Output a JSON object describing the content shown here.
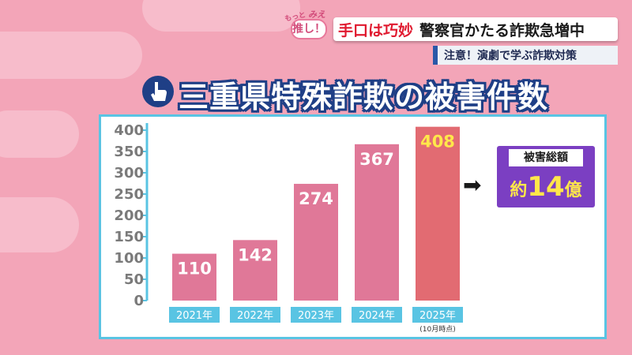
{
  "logo": {
    "small": "もっと",
    "mie": "みえ",
    "main": "推し！"
  },
  "headline": {
    "emphasis": "手口は巧妙",
    "rest": "警察官かたる詐欺急増中"
  },
  "subtitle": "注意！演劇で学ぶ詐欺対策",
  "title": "三重県特殊詐欺の被害件数",
  "callout": {
    "label": "被害総額",
    "prefix": "約",
    "number": "14",
    "suffix": "億",
    "arrow_icon": "right-arrow-icon"
  },
  "colors": {
    "bar_normal": "#e07898",
    "bar_highlight": "#e26b72",
    "label_highlight": "#ffe74a",
    "axis_blue": "#59c4e3",
    "title_outline": "#1f3f86",
    "callout_bg": "#7b3fc2"
  },
  "chart_data": {
    "type": "bar",
    "title": "三重県特殊詐欺の被害件数",
    "categories": [
      "2021年",
      "2022年",
      "2023年",
      "2024年",
      "2025年"
    ],
    "category_notes": [
      "",
      "",
      "",
      "",
      "(10月時点)"
    ],
    "values": [
      110,
      142,
      274,
      367,
      408
    ],
    "highlight_index": 4,
    "ylim": [
      0,
      400
    ],
    "yticks": [
      0,
      50,
      100,
      150,
      200,
      250,
      300,
      350,
      400
    ],
    "grid": false
  }
}
